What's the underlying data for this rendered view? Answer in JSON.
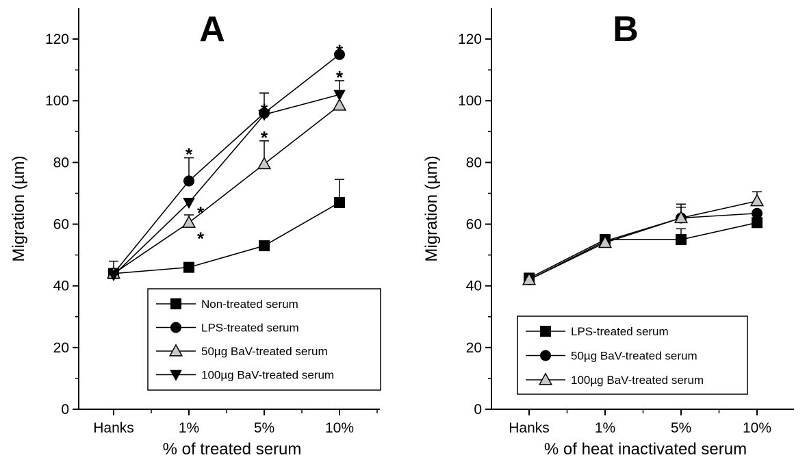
{
  "chart_data": [
    {
      "type": "line",
      "panel_label": "A",
      "xlabel": "% of treated serum",
      "ylabel": "Migration (µm)",
      "categories": [
        "Hanks",
        "1%",
        "5%",
        "10%"
      ],
      "ylim": [
        0,
        130
      ],
      "yticks": [
        0,
        20,
        40,
        60,
        80,
        100,
        120
      ],
      "legend_position": "bottom-right",
      "series": [
        {
          "name": "Non-treated serum",
          "marker": "square",
          "values": [
            44,
            46,
            53,
            67
          ],
          "errors": [
            4,
            0,
            0,
            7.5
          ],
          "significant": [
            false,
            false,
            false,
            false
          ]
        },
        {
          "name": "LPS-treated serum",
          "marker": "circle",
          "values": [
            44,
            74,
            96,
            115
          ],
          "errors": [
            0,
            7.5,
            0,
            0
          ],
          "significant": [
            false,
            true,
            true,
            true
          ]
        },
        {
          "name": "50µg BaV-treated serum",
          "marker": "triangle-up",
          "values": [
            44,
            60.5,
            79.5,
            98.5
          ],
          "errors": [
            0,
            2.5,
            7.5,
            0
          ],
          "significant": [
            false,
            true,
            true,
            false
          ]
        },
        {
          "name": "100µg BaV-treated serum",
          "marker": "triangle-down",
          "values": [
            43.5,
            67,
            95.5,
            102
          ],
          "errors": [
            0,
            0,
            7,
            4.5
          ],
          "significant": [
            false,
            true,
            false,
            true
          ]
        }
      ],
      "significance_marker": "*"
    },
    {
      "type": "line",
      "panel_label": "B",
      "xlabel": "% of heat inactivated serum",
      "ylabel": "Migration (µm)",
      "categories": [
        "Hanks",
        "1%",
        "5%",
        "10%"
      ],
      "ylim": [
        0,
        130
      ],
      "yticks": [
        0,
        20,
        40,
        60,
        80,
        100,
        120
      ],
      "legend_position": "bottom-left",
      "series": [
        {
          "name": "LPS-treated serum",
          "marker": "square",
          "values": [
            42.5,
            55,
            55,
            60.5
          ],
          "errors": [
            0,
            0,
            3.5,
            0
          ],
          "significant": [
            false,
            false,
            false,
            false
          ]
        },
        {
          "name": "50µg BaV-treated serum",
          "marker": "circle",
          "values": [
            42,
            54.5,
            62,
            63.5
          ],
          "errors": [
            0,
            0,
            4.5,
            0
          ],
          "significant": [
            false,
            false,
            false,
            false
          ]
        },
        {
          "name": "100µg BaV-treated serum",
          "marker": "triangle-up",
          "values": [
            42,
            54,
            62,
            67.5
          ],
          "errors": [
            0,
            0,
            3.5,
            3
          ],
          "significant": [
            false,
            false,
            false,
            false
          ]
        }
      ],
      "significance_marker": "*"
    }
  ],
  "colors": {
    "line": "#000000",
    "marker_dark": "#000000",
    "marker_light": "#c8c8c8"
  }
}
